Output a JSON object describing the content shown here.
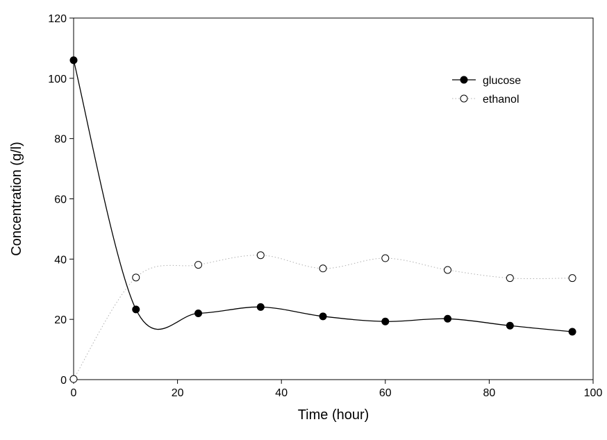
{
  "chart_data": {
    "type": "line",
    "xlabel": "Time (hour)",
    "ylabel": "Concentration (g/l)",
    "xlim": [
      0,
      100
    ],
    "ylim": [
      0,
      120
    ],
    "xticks": [
      0,
      20,
      40,
      60,
      80,
      100
    ],
    "yticks": [
      0,
      20,
      40,
      60,
      80,
      100,
      120
    ],
    "grid": false,
    "legend_position": "top-right",
    "series": [
      {
        "name": "glucose",
        "marker": "filled-circle",
        "line_style": "solid",
        "color": "#000000",
        "x": [
          0,
          12,
          24,
          36,
          48,
          60,
          72,
          84,
          96
        ],
        "y": [
          106,
          23.3,
          22.0,
          24.1,
          21.0,
          19.3,
          20.2,
          17.9,
          15.9
        ]
      },
      {
        "name": "ethanol",
        "marker": "open-circle",
        "line_style": "dotted",
        "color": "#b0b0b0",
        "x": [
          0,
          12,
          24,
          36,
          48,
          60,
          72,
          84,
          96
        ],
        "y": [
          0.2,
          33.9,
          38.1,
          41.3,
          36.9,
          40.3,
          36.4,
          33.7,
          33.7
        ]
      }
    ]
  }
}
